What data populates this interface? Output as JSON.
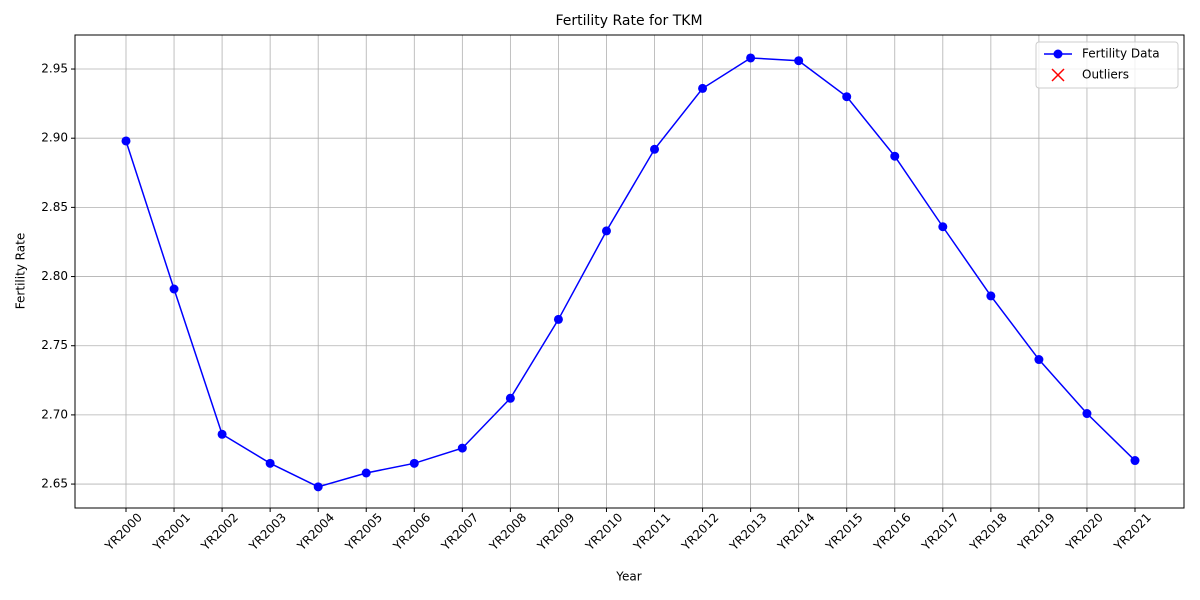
{
  "chart_data": {
    "type": "line",
    "title": "Fertility Rate for TKM",
    "x_label": "Year",
    "y_label": "Fertility Rate",
    "categories": [
      "YR2000",
      "YR2001",
      "YR2002",
      "YR2003",
      "YR2004",
      "YR2005",
      "YR2006",
      "YR2007",
      "YR2008",
      "YR2009",
      "YR2010",
      "YR2011",
      "YR2012",
      "YR2013",
      "YR2014",
      "YR2015",
      "YR2016",
      "YR2017",
      "YR2018",
      "YR2019",
      "YR2020",
      "YR2021"
    ],
    "series": [
      {
        "name": "Fertility Data",
        "color": "#0000ff",
        "marker": "o",
        "values": [
          2.898,
          2.791,
          2.686,
          2.665,
          2.648,
          2.658,
          2.665,
          2.676,
          2.712,
          2.769,
          2.833,
          2.892,
          2.936,
          2.958,
          2.956,
          2.93,
          2.887,
          2.836,
          2.786,
          2.74,
          2.701,
          2.667
        ]
      },
      {
        "name": "Outliers",
        "color": "#ff0000",
        "marker": "x",
        "values": [
          null,
          null,
          null,
          null,
          null,
          null,
          null,
          null,
          null,
          null,
          null,
          null,
          null,
          null,
          null,
          null,
          null,
          null,
          null,
          null,
          null,
          null
        ]
      }
    ],
    "ylim": [
      2.6327,
      2.9746
    ],
    "yticks": [
      2.65,
      {
        "value": 2.7,
        "label": "2.70"
      },
      2.75,
      {
        "value": 2.8,
        "label": "2.80"
      },
      2.85,
      {
        "value": 2.9,
        "label": "2.90"
      },
      2.95
    ],
    "grid": true,
    "legend": "upper right"
  }
}
